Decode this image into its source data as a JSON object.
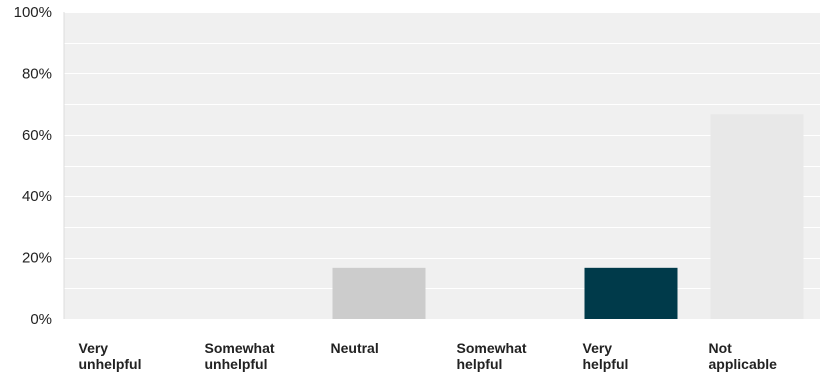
{
  "chart_data": {
    "type": "bar",
    "categories": [
      [
        "Very",
        "unhelpful"
      ],
      [
        "Somewhat",
        "unhelpful"
      ],
      [
        "Neutral"
      ],
      [
        "Somewhat",
        "helpful"
      ],
      [
        "Very",
        "helpful"
      ],
      [
        "Not",
        "applicable"
      ]
    ],
    "values": [
      0,
      0,
      16.67,
      0,
      16.67,
      66.67
    ],
    "bar_colors": [
      "#cccccc",
      "#cccccc",
      "#cccccc",
      "#cccccc",
      "#003a4a",
      "#e8e8e8"
    ],
    "ylim": [
      0,
      100
    ],
    "yticks": [
      "0%",
      "20%",
      "40%",
      "60%",
      "80%",
      "100%"
    ],
    "grid": true,
    "plot_background": "#f0f0f0",
    "grid_color": "#ffffff"
  }
}
